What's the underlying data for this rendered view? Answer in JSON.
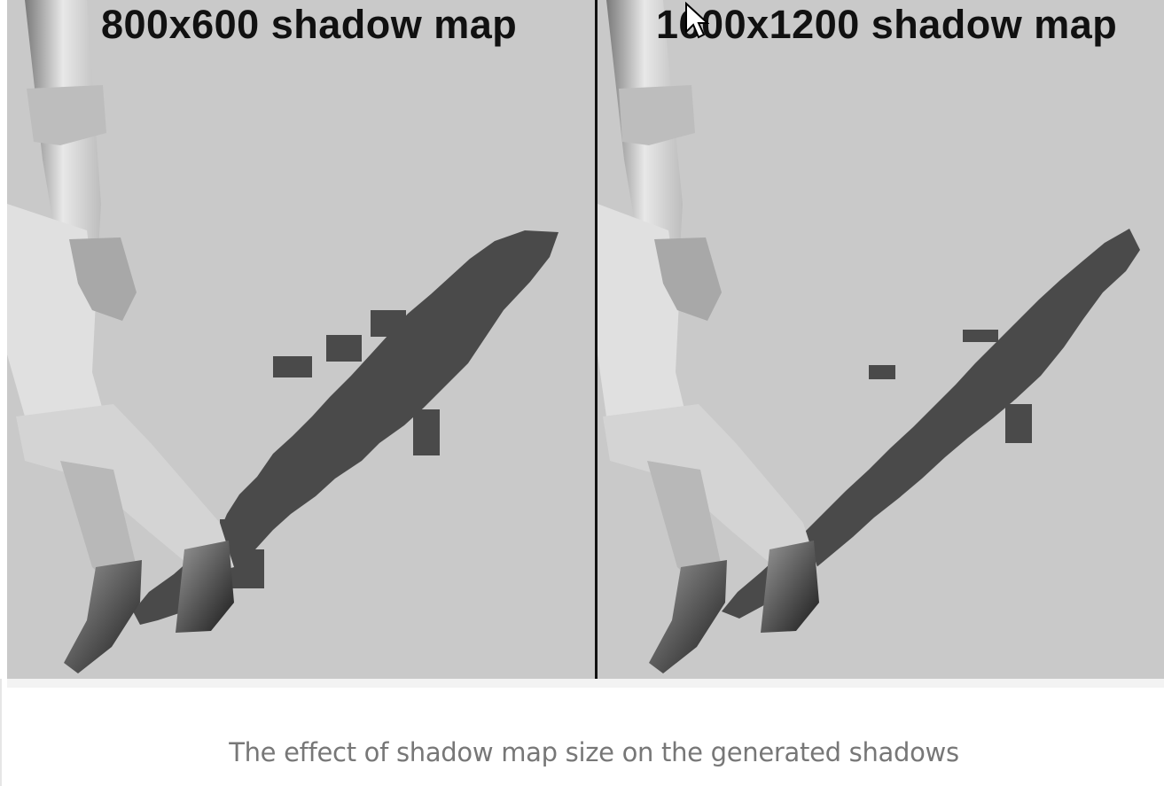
{
  "figure": {
    "panels": [
      {
        "label": "800x600 shadow map"
      },
      {
        "label": "1600x1200 shadow map"
      }
    ]
  },
  "caption": "The effect of shadow map size on the generated shadows",
  "colors": {
    "floor": "#c9c9c9",
    "shadow": "#4a4a4a",
    "divider": "#111111",
    "caption": "#777777"
  }
}
